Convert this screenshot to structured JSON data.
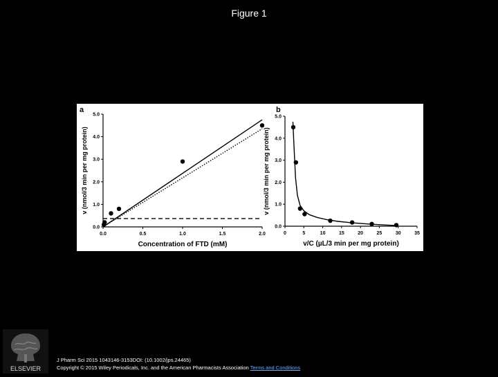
{
  "slide": {
    "title": "Figure 1",
    "citation_line1": "J Pharm Sci 2015 1043146-3153DOI: (10.1002/jps.24465)",
    "citation_line2": "Copyright © 2015 Wiley Periodicals, Inc. and the American Pharmacists Association",
    "terms_link": "Terms and Conditions",
    "logo_text": "ELSEVIER"
  },
  "chart_data": [
    {
      "type": "line",
      "panel_label": "a",
      "xlabel": "Concentration of FTD (mM)",
      "ylabel": "v (nmol/3 min per mg protein)",
      "xlim": [
        0,
        2.0
      ],
      "ylim": [
        0,
        5.0
      ],
      "xticks": [
        "0.0",
        "0.5",
        "1.0",
        "1.5",
        "2.0"
      ],
      "yticks": [
        "0.0",
        "1.0",
        "2.0",
        "3.0",
        "4.0",
        "5.0"
      ],
      "points": [
        {
          "x": 0.01,
          "y": 0.1
        },
        {
          "x": 0.02,
          "y": 0.2
        },
        {
          "x": 0.1,
          "y": 0.6
        },
        {
          "x": 0.2,
          "y": 0.8
        },
        {
          "x": 1.0,
          "y": 2.9
        },
        {
          "x": 2.0,
          "y": 4.5
        }
      ],
      "series": [
        {
          "style": "solid",
          "x": [
            0.0,
            2.0
          ],
          "y": [
            0.0,
            4.75
          ]
        },
        {
          "style": "dotted",
          "x": [
            0.0,
            2.0
          ],
          "y": [
            0.0,
            4.35
          ]
        },
        {
          "style": "dashed",
          "x": [
            0.0,
            2.0
          ],
          "y": [
            0.37,
            0.37
          ]
        }
      ],
      "grid": false
    },
    {
      "type": "line",
      "panel_label": "b",
      "xlabel": "v/C (µL/3 min per mg protein)",
      "ylabel": "v (nmol/3 min per mg protein)",
      "xlim": [
        0,
        35
      ],
      "ylim": [
        0,
        5.0
      ],
      "xticks": [
        "0",
        "5",
        "10",
        "15",
        "20",
        "25",
        "30",
        "35"
      ],
      "yticks": [
        "0.0",
        "1.0",
        "2.0",
        "3.0",
        "4.0",
        "5.0"
      ],
      "points": [
        {
          "x": 2.2,
          "y": 4.5
        },
        {
          "x": 2.9,
          "y": 2.9
        },
        {
          "x": 4.0,
          "y": 0.8
        },
        {
          "x": 5.2,
          "y": 0.55
        },
        {
          "x": 12.0,
          "y": 0.25
        },
        {
          "x": 17.8,
          "y": 0.17
        },
        {
          "x": 23.0,
          "y": 0.1
        },
        {
          "x": 29.5,
          "y": 0.05
        }
      ],
      "series": [
        {
          "style": "solid",
          "x": [
            2.1,
            2.4,
            2.8,
            3.3,
            4.0,
            5.0,
            6.5,
            8.5,
            11.0,
            14.0,
            18.0,
            22.0,
            26.0,
            29.5
          ],
          "y": [
            4.75,
            3.6,
            2.2,
            1.4,
            0.95,
            0.7,
            0.52,
            0.4,
            0.3,
            0.22,
            0.15,
            0.1,
            0.06,
            0.03
          ]
        }
      ],
      "grid": false
    }
  ]
}
